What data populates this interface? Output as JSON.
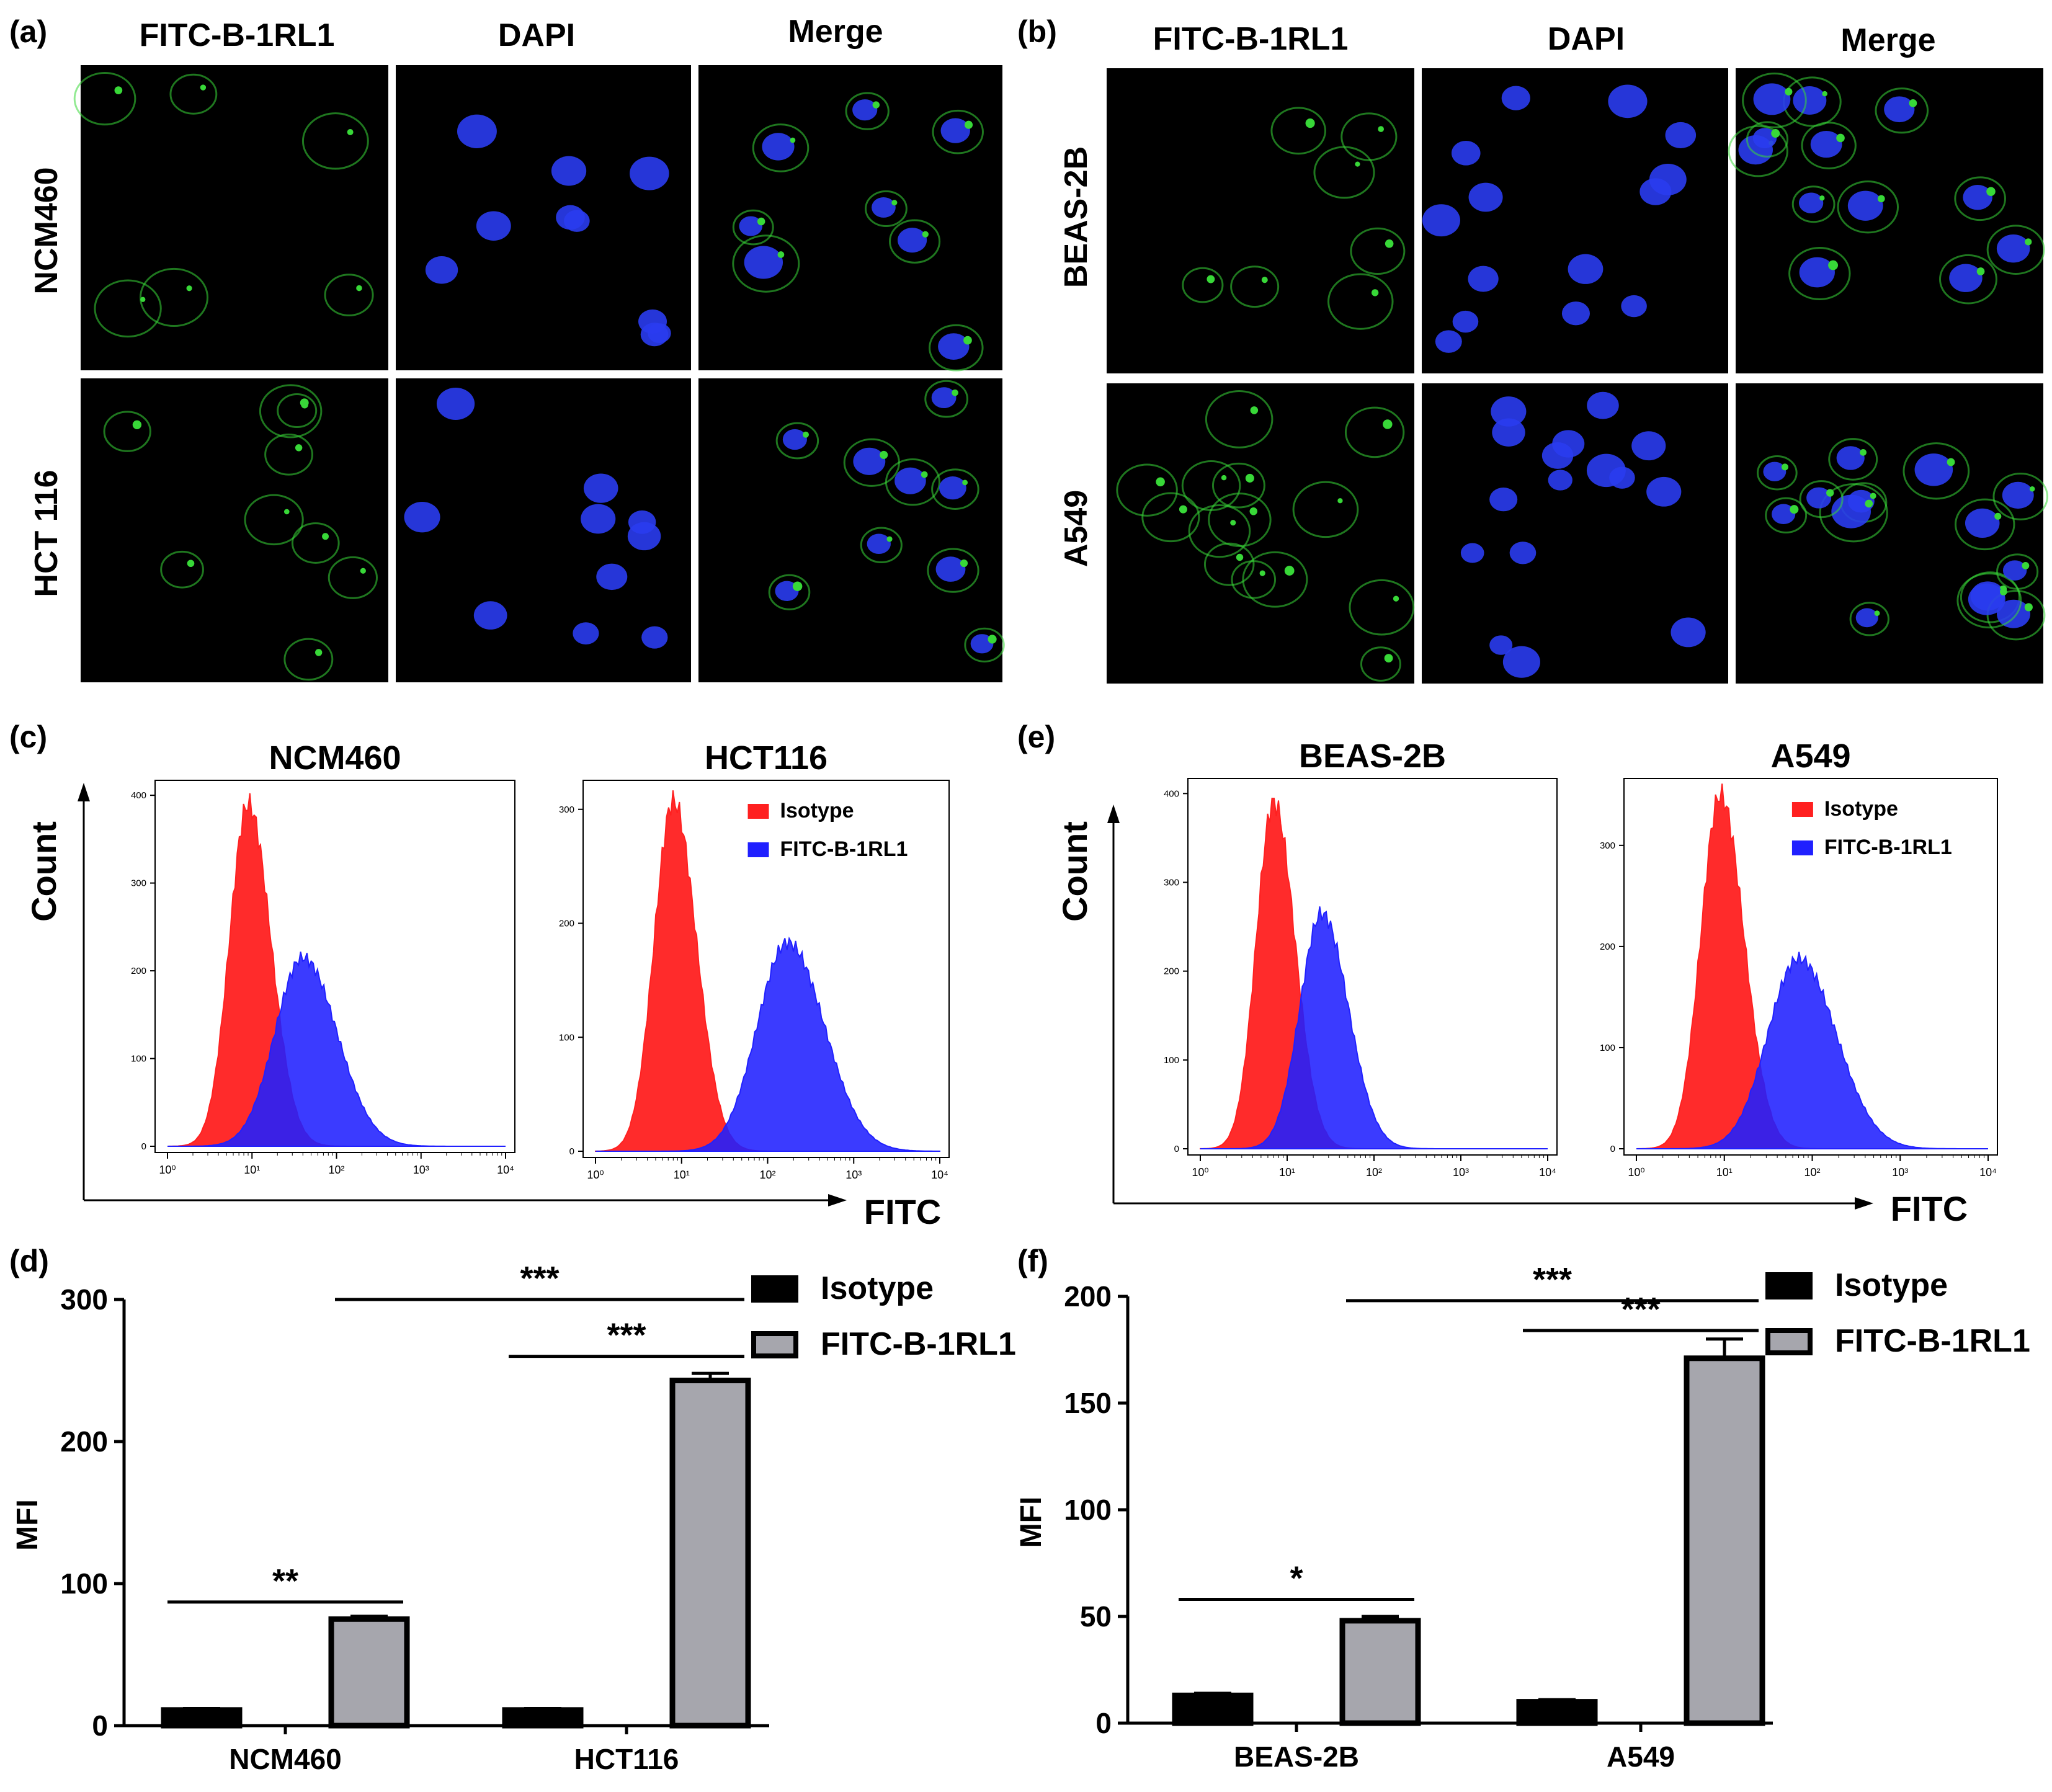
{
  "panels": {
    "a": {
      "letter": "(a)",
      "columns": [
        "FITC-B-1RL1",
        "DAPI",
        "Merge"
      ],
      "rows": [
        "NCM460",
        "HCT 116"
      ]
    },
    "b": {
      "letter": "(b)",
      "columns": [
        "FITC-B-1RL1",
        "DAPI",
        "Merge"
      ],
      "rows": [
        "BEAS-2B",
        "A549"
      ]
    },
    "c": {
      "letter": "(c)",
      "ylabel": "Count",
      "xlabel": "FITC"
    },
    "e": {
      "letter": "(e)",
      "ylabel": "Count",
      "xlabel": "FITC"
    },
    "d": {
      "letter": "(d)"
    },
    "f": {
      "letter": "(f)"
    }
  },
  "colors": {
    "isotype_hist": "#ff2020",
    "fitc_hist": "#2020ff",
    "isotype_bar": "#000000",
    "fitc_bar": "#a6a6ad",
    "green_fluor": "#38d838",
    "blue_fluor": "#2a3cf0"
  },
  "chart_data": [
    {
      "id": "c-left",
      "type": "area",
      "title": "NCM460",
      "x_scale": "log",
      "xlim": [
        1,
        10000
      ],
      "ylim": [
        0,
        410
      ],
      "xticks": [
        "10⁰",
        "10¹",
        "10²",
        "10³",
        "10⁴"
      ],
      "yticks": [
        0,
        100,
        200,
        300,
        400
      ],
      "legend": null,
      "series": [
        {
          "name": "Isotype",
          "color": "#ff2020",
          "peak_x": 9,
          "peak_y": 390,
          "width_log": 0.22
        },
        {
          "name": "FITC-B-1RL1",
          "color": "#2020ff",
          "peak_x": 40,
          "peak_y": 215,
          "width_log": 0.33
        }
      ]
    },
    {
      "id": "c-right",
      "type": "area",
      "title": "HCT116",
      "x_scale": "log",
      "xlim": [
        1,
        10000
      ],
      "ylim": [
        0,
        320
      ],
      "xticks": [
        "10⁰",
        "10¹",
        "10²",
        "10³",
        "10⁴"
      ],
      "yticks": [
        0,
        100,
        200,
        300
      ],
      "legend": "top-right",
      "series": [
        {
          "name": "Isotype",
          "color": "#ff2020",
          "peak_x": 8,
          "peak_y": 307,
          "width_log": 0.22
        },
        {
          "name": "FITC-B-1RL1",
          "color": "#2020ff",
          "peak_x": 170,
          "peak_y": 183,
          "width_log": 0.35
        }
      ]
    },
    {
      "id": "e-left",
      "type": "area",
      "title": "BEAS-2B",
      "x_scale": "log",
      "xlim": [
        1,
        10000
      ],
      "ylim": [
        0,
        410
      ],
      "xticks": [
        "10⁰",
        "10¹",
        "10²",
        "10³",
        "10⁴"
      ],
      "yticks": [
        0,
        100,
        200,
        300,
        400
      ],
      "legend": null,
      "series": [
        {
          "name": "Isotype",
          "color": "#ff2020",
          "peak_x": 7,
          "peak_y": 390,
          "width_log": 0.2
        },
        {
          "name": "FITC-B-1RL1",
          "color": "#2020ff",
          "peak_x": 25,
          "peak_y": 265,
          "width_log": 0.25
        }
      ]
    },
    {
      "id": "e-right",
      "type": "area",
      "title": "A549",
      "x_scale": "log",
      "xlim": [
        1,
        10000
      ],
      "ylim": [
        0,
        360
      ],
      "xticks": [
        "10⁰",
        "10¹",
        "10²",
        "10³",
        "10⁴"
      ],
      "yticks": [
        0,
        100,
        200,
        300
      ],
      "legend": "top-right",
      "series": [
        {
          "name": "Isotype",
          "color": "#ff2020",
          "peak_x": 9,
          "peak_y": 350,
          "width_log": 0.22
        },
        {
          "name": "FITC-B-1RL1",
          "color": "#2020ff",
          "peak_x": 70,
          "peak_y": 188,
          "width_log": 0.35
        }
      ]
    },
    {
      "id": "d",
      "type": "bar",
      "title": "",
      "xlabel": "",
      "ylabel": "MFI",
      "ylim": [
        0,
        300
      ],
      "yticks": [
        0,
        100,
        200,
        300
      ],
      "categories": [
        "NCM460",
        "HCT116"
      ],
      "legend": "top-right",
      "series": [
        {
          "name": "Isotype",
          "color": "#000000",
          "values": [
            11,
            11
          ],
          "errors": [
            1,
            1
          ]
        },
        {
          "name": "FITC-B-1RL1",
          "color": "#a6a6ad",
          "values": [
            75,
            243
          ],
          "errors": [
            2,
            5
          ]
        }
      ],
      "annotations": [
        {
          "label": "**",
          "from": "NCM460.Isotype",
          "to": "NCM460.FITC-B-1RL1",
          "y": 87
        },
        {
          "label": "***",
          "from": "HCT116.Isotype",
          "to": "HCT116.FITC-B-1RL1",
          "y": 260
        },
        {
          "label": "***",
          "from": "NCM460.FITC-B-1RL1",
          "to": "HCT116.FITC-B-1RL1",
          "y": 300
        }
      ]
    },
    {
      "id": "f",
      "type": "bar",
      "title": "",
      "xlabel": "",
      "ylabel": "MFI",
      "ylim": [
        0,
        200
      ],
      "yticks": [
        0,
        50,
        100,
        150,
        200
      ],
      "categories": [
        "BEAS-2B",
        "A549"
      ],
      "legend": "top-right",
      "series": [
        {
          "name": "Isotype",
          "color": "#000000",
          "values": [
            13,
            10
          ],
          "errors": [
            1,
            1
          ]
        },
        {
          "name": "FITC-B-1RL1",
          "color": "#a6a6ad",
          "values": [
            48,
            171
          ],
          "errors": [
            2,
            9
          ]
        }
      ],
      "annotations": [
        {
          "label": "*",
          "from": "BEAS-2B.Isotype",
          "to": "BEAS-2B.FITC-B-1RL1",
          "y": 58
        },
        {
          "label": "***",
          "from": "A549.Isotype",
          "to": "A549.FITC-B-1RL1",
          "y": 184
        },
        {
          "label": "***",
          "from": "BEAS-2B.FITC-B-1RL1",
          "to": "A549.FITC-B-1RL1",
          "y": 198
        }
      ]
    }
  ]
}
